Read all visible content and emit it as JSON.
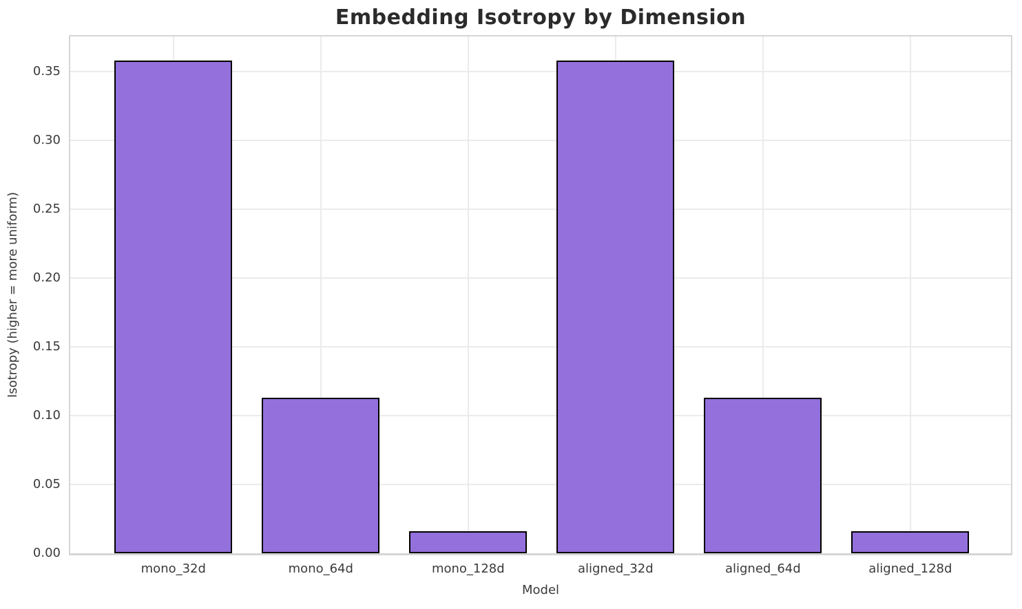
{
  "chart_data": {
    "type": "bar",
    "title": "Embedding Isotropy by Dimension",
    "xlabel": "Model",
    "ylabel": "Isotropy (higher = more uniform)",
    "categories": [
      "mono_32d",
      "mono_64d",
      "mono_128d",
      "aligned_32d",
      "aligned_64d",
      "aligned_128d"
    ],
    "values": [
      0.358,
      0.113,
      0.016,
      0.358,
      0.113,
      0.016
    ],
    "ylim": [
      0,
      0.3755
    ],
    "xlim": [
      -0.7,
      5.683
    ],
    "yticks": [
      0.0,
      0.05,
      0.1,
      0.15,
      0.2,
      0.25,
      0.3,
      0.35
    ],
    "ytick_labels": [
      "0.00",
      "0.05",
      "0.10",
      "0.15",
      "0.20",
      "0.25",
      "0.30",
      "0.35"
    ],
    "bar_width_fraction": 0.8,
    "grid": true,
    "legend": "none",
    "colors": {
      "bar_fill": "#9370DB",
      "bar_edge": "#000000",
      "grid": "#ebebeb",
      "spine": "#d5d5d5",
      "title_text": "#2b2b2b",
      "tick_text": "#3a3a3a",
      "background": "#ffffff"
    }
  }
}
